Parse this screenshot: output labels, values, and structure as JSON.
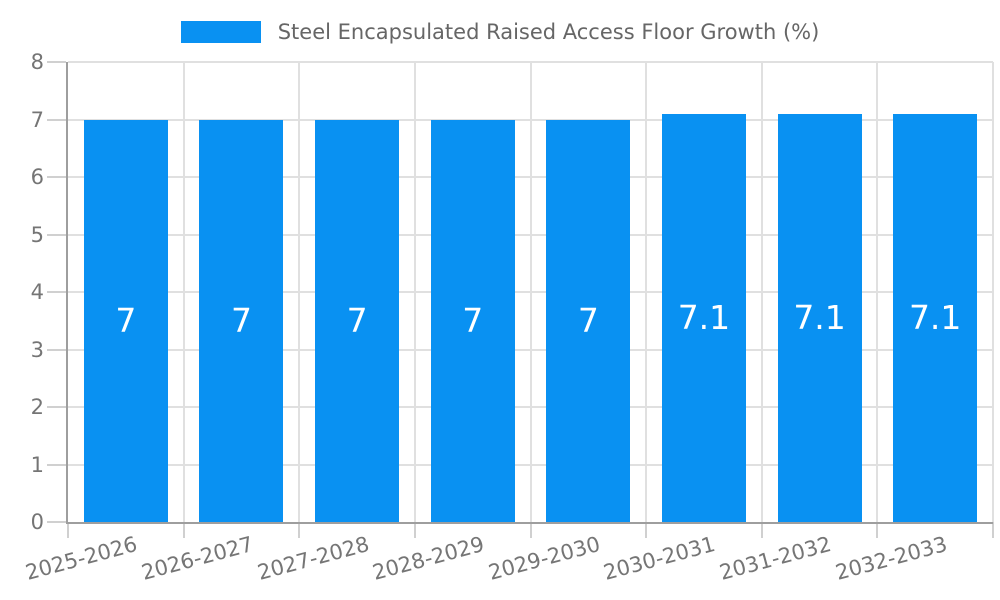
{
  "legend": {
    "label": "Steel Encapsulated Raised Access Floor Growth (%)"
  },
  "chart_data": {
    "type": "bar",
    "title": "",
    "legend": {
      "label": "Steel Encapsulated Raised Access Floor Growth (%)",
      "position": "top"
    },
    "categories": [
      "2025-2026",
      "2026-2027",
      "2027-2028",
      "2028-2029",
      "2029-2030",
      "2030-2031",
      "2031-2032",
      "2032-2033"
    ],
    "series": [
      {
        "name": "Steel Encapsulated Raised Access Floor Growth (%)",
        "values": [
          7,
          7,
          7,
          7,
          7,
          7.1,
          7.1,
          7.1
        ]
      }
    ],
    "bar_labels": [
      "7",
      "7",
      "7",
      "7",
      "7",
      "7.1",
      "7.1",
      "7.1"
    ],
    "xlabel": "",
    "ylabel": "",
    "ylim": [
      0,
      8
    ],
    "yticks": [
      0,
      1,
      2,
      3,
      4,
      5,
      6,
      7,
      8
    ],
    "grid": true,
    "x_label_rotation_deg": -15,
    "colors": {
      "bar": "#0991F2",
      "axis": "#9E9E9E",
      "gridline": "#E0E0E0",
      "tick": "#D0D0D0",
      "tick_label": "#757575",
      "legend_text": "#666666",
      "bar_label": "#FFFFFF"
    }
  }
}
